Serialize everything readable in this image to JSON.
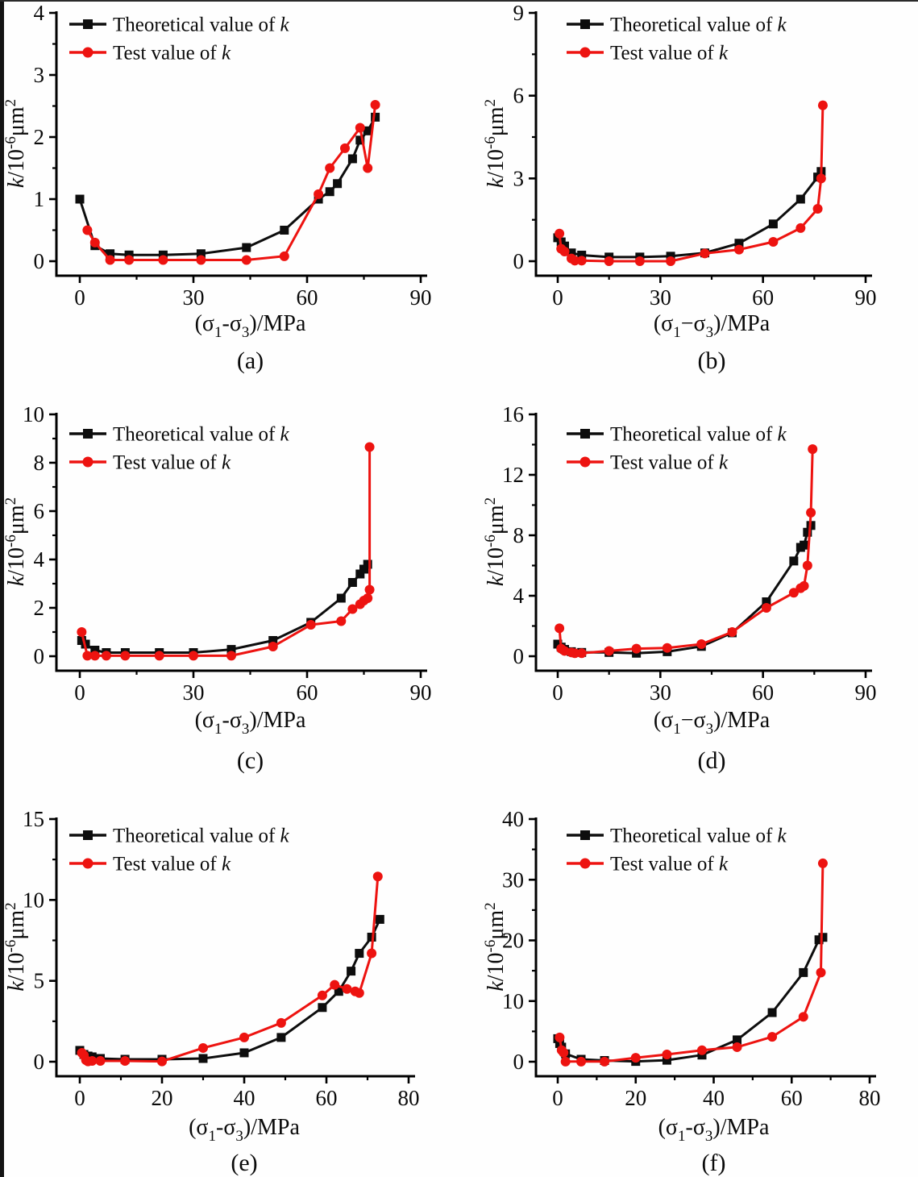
{
  "figure": {
    "description": "Six line charts comparing theoretical and test permeability k versus deviatoric stress",
    "background": "#fefefe",
    "axis_color": "#000000",
    "text_color": "#0a0a0a"
  },
  "legend": {
    "theoretical_label": "Theoretical value of k",
    "test_label": "Test value of k",
    "theoretical_color": "#0d0d0d",
    "test_color": "#ed1310"
  },
  "chart_data": [
    {
      "type": "line",
      "panel": "(a)",
      "xlabel": "(σ1-σ3)/MPa",
      "ylabel": "k/10^-6 μm^2",
      "xlabel_parts": {
        "pre": "(σ",
        "sub1": "1",
        "mid": "-σ",
        "sub2": "3",
        "post": ")/MPa"
      },
      "ylabel_parts": {
        "italic": "k",
        "base": "/10",
        "sup": "-6",
        "unit": "μm",
        "sup2": "2"
      },
      "xlim": [
        0,
        90
      ],
      "ylim": [
        0,
        4
      ],
      "xticks": [
        0,
        30,
        60,
        90
      ],
      "yticks": [
        0,
        1,
        2,
        3,
        4
      ],
      "grid": false,
      "legend_position": "top-left",
      "series": [
        {
          "name": "Theoretical value of k",
          "color": "#0d0d0d",
          "marker": "square",
          "points": [
            [
              0,
              1.0
            ],
            [
              4,
              0.25
            ],
            [
              8,
              0.12
            ],
            [
              13,
              0.1
            ],
            [
              22,
              0.1
            ],
            [
              32,
              0.12
            ],
            [
              44,
              0.22
            ],
            [
              54,
              0.5
            ],
            [
              63,
              1.0
            ],
            [
              66,
              1.12
            ],
            [
              68,
              1.25
            ],
            [
              72,
              1.65
            ],
            [
              74,
              1.95
            ],
            [
              76,
              2.1
            ],
            [
              78,
              2.32
            ]
          ]
        },
        {
          "name": "Test value of k",
          "color": "#ed1310",
          "marker": "circle",
          "points": [
            [
              2,
              0.5
            ],
            [
              4,
              0.3
            ],
            [
              8,
              0.02
            ],
            [
              13,
              0.02
            ],
            [
              22,
              0.02
            ],
            [
              32,
              0.02
            ],
            [
              44,
              0.02
            ],
            [
              54,
              0.08
            ],
            [
              63,
              1.08
            ],
            [
              66,
              1.5
            ],
            [
              70,
              1.82
            ],
            [
              74,
              2.15
            ],
            [
              76,
              1.5
            ],
            [
              78,
              2.52
            ]
          ]
        }
      ]
    },
    {
      "type": "line",
      "panel": "(b)",
      "xlabel": "(σ1−σ3)/MPa",
      "ylabel": "k/10^-6 μm^2",
      "xlabel_parts": {
        "pre": "(σ",
        "sub1": "1",
        "mid": "−σ",
        "sub2": "3",
        "post": ")/MPa"
      },
      "ylabel_parts": {
        "italic": "k",
        "base": "/10",
        "sup": "-6",
        "unit": "μm",
        "sup2": "2"
      },
      "xlim": [
        0,
        90
      ],
      "ylim": [
        0,
        9
      ],
      "xticks": [
        0,
        30,
        60,
        90
      ],
      "yticks": [
        0,
        3,
        6,
        9
      ],
      "grid": false,
      "legend_position": "top-left",
      "series": [
        {
          "name": "Theoretical value of k",
          "color": "#0d0d0d",
          "marker": "square",
          "points": [
            [
              0,
              0.85
            ],
            [
              1,
              0.7
            ],
            [
              2,
              0.55
            ],
            [
              4,
              0.3
            ],
            [
              7,
              0.22
            ],
            [
              15,
              0.15
            ],
            [
              24,
              0.15
            ],
            [
              33,
              0.18
            ],
            [
              43,
              0.3
            ],
            [
              53,
              0.65
            ],
            [
              63,
              1.35
            ],
            [
              71,
              2.25
            ],
            [
              76,
              3.05
            ],
            [
              77,
              3.25
            ]
          ]
        },
        {
          "name": "Test value of k",
          "color": "#ed1310",
          "marker": "circle",
          "points": [
            [
              0.5,
              1.0
            ],
            [
              1,
              0.45
            ],
            [
              2,
              0.35
            ],
            [
              4,
              0.1
            ],
            [
              5,
              0.02
            ],
            [
              7,
              0.02
            ],
            [
              15,
              0.0
            ],
            [
              24,
              0.0
            ],
            [
              33,
              0.0
            ],
            [
              43,
              0.28
            ],
            [
              53,
              0.42
            ],
            [
              63,
              0.7
            ],
            [
              71,
              1.2
            ],
            [
              76,
              1.9
            ],
            [
              77,
              3.0
            ],
            [
              77.5,
              5.65
            ]
          ]
        }
      ]
    },
    {
      "type": "line",
      "panel": "(c)",
      "xlabel": "(σ1-σ3)/MPa",
      "ylabel": "k/10^-6 μm^2",
      "xlabel_parts": {
        "pre": "(σ",
        "sub1": "1",
        "mid": "-σ",
        "sub2": "3",
        "post": ")/MPa"
      },
      "ylabel_parts": {
        "italic": "k",
        "base": "/10",
        "sup": "-6",
        "unit": "μm",
        "sup2": "2"
      },
      "xlim": [
        0,
        90
      ],
      "ylim": [
        0,
        10
      ],
      "xticks": [
        0,
        30,
        60,
        90
      ],
      "yticks": [
        0,
        2,
        4,
        6,
        8,
        10
      ],
      "grid": false,
      "legend_position": "top-left",
      "series": [
        {
          "name": "Theoretical value of k",
          "color": "#0d0d0d",
          "marker": "square",
          "points": [
            [
              0.5,
              0.65
            ],
            [
              1.5,
              0.5
            ],
            [
              4,
              0.25
            ],
            [
              7,
              0.15
            ],
            [
              12,
              0.15
            ],
            [
              21,
              0.15
            ],
            [
              30,
              0.15
            ],
            [
              40,
              0.28
            ],
            [
              51,
              0.65
            ],
            [
              61,
              1.4
            ],
            [
              69,
              2.4
            ],
            [
              72,
              3.05
            ],
            [
              74,
              3.4
            ],
            [
              75,
              3.6
            ],
            [
              76,
              3.8
            ]
          ]
        },
        {
          "name": "Test value of k",
          "color": "#ed1310",
          "marker": "circle",
          "points": [
            [
              0.5,
              1.0
            ],
            [
              2,
              0.02
            ],
            [
              4,
              0.02
            ],
            [
              7,
              0.02
            ],
            [
              12,
              0.02
            ],
            [
              21,
              0.02
            ],
            [
              30,
              0.02
            ],
            [
              40,
              0.02
            ],
            [
              51,
              0.4
            ],
            [
              61,
              1.3
            ],
            [
              69,
              1.45
            ],
            [
              72,
              1.95
            ],
            [
              74,
              2.15
            ],
            [
              75,
              2.3
            ],
            [
              76,
              2.4
            ],
            [
              76.5,
              2.75
            ],
            [
              76.5,
              8.65
            ]
          ]
        }
      ]
    },
    {
      "type": "line",
      "panel": "(d)",
      "xlabel": "(σ1−σ3)/MPa",
      "ylabel": "k/10^-6 μm^2",
      "xlabel_parts": {
        "pre": "(σ",
        "sub1": "1",
        "mid": "−σ",
        "sub2": "3",
        "post": ")/MPa"
      },
      "ylabel_parts": {
        "italic": "k",
        "base": "/10",
        "sup": "-6",
        "unit": "μm",
        "sup2": "2"
      },
      "xlim": [
        0,
        90
      ],
      "ylim": [
        0,
        16
      ],
      "xticks": [
        0,
        30,
        60,
        90
      ],
      "yticks": [
        0,
        4,
        8,
        12,
        16
      ],
      "grid": false,
      "legend_position": "top-left",
      "series": [
        {
          "name": "Theoretical value of k",
          "color": "#0d0d0d",
          "marker": "square",
          "points": [
            [
              0,
              0.8
            ],
            [
              1,
              0.6
            ],
            [
              2,
              0.45
            ],
            [
              4,
              0.3
            ],
            [
              7,
              0.25
            ],
            [
              15,
              0.25
            ],
            [
              23,
              0.2
            ],
            [
              32,
              0.3
            ],
            [
              42,
              0.65
            ],
            [
              51,
              1.55
            ],
            [
              61,
              3.6
            ],
            [
              69,
              6.3
            ],
            [
              71,
              7.2
            ],
            [
              72,
              7.35
            ],
            [
              73,
              8.2
            ],
            [
              74,
              8.65
            ]
          ]
        },
        {
          "name": "Test value of k",
          "color": "#ed1310",
          "marker": "circle",
          "points": [
            [
              0.5,
              1.85
            ],
            [
              1,
              0.5
            ],
            [
              2,
              0.35
            ],
            [
              4,
              0.25
            ],
            [
              5,
              0.2
            ],
            [
              7,
              0.2
            ],
            [
              15,
              0.35
            ],
            [
              23,
              0.5
            ],
            [
              32,
              0.55
            ],
            [
              42,
              0.8
            ],
            [
              51,
              1.6
            ],
            [
              61,
              3.2
            ],
            [
              69,
              4.2
            ],
            [
              71,
              4.5
            ],
            [
              72,
              4.65
            ],
            [
              73,
              6.0
            ],
            [
              74,
              9.5
            ],
            [
              74.5,
              13.7
            ]
          ]
        }
      ]
    },
    {
      "type": "line",
      "panel": "(e)",
      "xlabel": "(σ1-σ3)/MPa",
      "ylabel": "k/10^-6 μm^2",
      "xlabel_parts": {
        "pre": "(σ",
        "sub1": "1",
        "mid": "-σ",
        "sub2": "3",
        "post": ")/MPa"
      },
      "ylabel_parts": {
        "italic": "k",
        "base": "/10",
        "sup": "-6",
        "unit": "μm",
        "sup2": "2"
      },
      "xlim": [
        0,
        80
      ],
      "ylim": [
        0,
        15
      ],
      "xticks": [
        0,
        20,
        40,
        60,
        80
      ],
      "yticks": [
        0,
        5,
        10,
        15
      ],
      "grid": false,
      "legend_position": "top-left",
      "series": [
        {
          "name": "Theoretical value of k",
          "color": "#0d0d0d",
          "marker": "square",
          "points": [
            [
              0,
              0.7
            ],
            [
              1,
              0.45
            ],
            [
              2,
              0.35
            ],
            [
              3,
              0.3
            ],
            [
              5,
              0.2
            ],
            [
              11,
              0.15
            ],
            [
              20,
              0.15
            ],
            [
              30,
              0.2
            ],
            [
              40,
              0.55
            ],
            [
              49,
              1.5
            ],
            [
              59,
              3.35
            ],
            [
              63,
              4.35
            ],
            [
              66,
              5.6
            ],
            [
              68,
              6.7
            ],
            [
              71,
              7.7
            ],
            [
              73,
              8.8
            ]
          ]
        },
        {
          "name": "Test value of k",
          "color": "#ed1310",
          "marker": "circle",
          "points": [
            [
              0.5,
              0.55
            ],
            [
              1,
              0.4
            ],
            [
              1.5,
              0.1
            ],
            [
              2,
              0.02
            ],
            [
              3,
              0.05
            ],
            [
              5,
              0.05
            ],
            [
              11,
              0.05
            ],
            [
              20,
              0.02
            ],
            [
              30,
              0.85
            ],
            [
              40,
              1.5
            ],
            [
              49,
              2.4
            ],
            [
              59,
              4.1
            ],
            [
              62,
              4.75
            ],
            [
              65,
              4.5
            ],
            [
              67,
              4.35
            ],
            [
              68,
              4.25
            ],
            [
              71,
              6.7
            ],
            [
              72.5,
              11.45
            ]
          ]
        }
      ]
    },
    {
      "type": "line",
      "panel": "(f)",
      "xlabel": "(σ1-σ3)/MPa",
      "ylabel": "k/10^-6 μm^2",
      "xlabel_parts": {
        "pre": "(σ",
        "sub1": "1",
        "mid": "-σ",
        "sub2": "3",
        "post": ")/MPa"
      },
      "ylabel_parts": {
        "italic": "k",
        "base": "/10",
        "sup": "-6",
        "unit": "μm",
        "sup2": "2"
      },
      "xlim": [
        0,
        80
      ],
      "ylim": [
        0,
        40
      ],
      "xticks": [
        0,
        20,
        40,
        60,
        80
      ],
      "yticks": [
        0,
        10,
        20,
        30,
        40
      ],
      "grid": false,
      "legend_position": "top-left",
      "series": [
        {
          "name": "Theoretical value of k",
          "color": "#0d0d0d",
          "marker": "square",
          "points": [
            [
              0,
              3.8
            ],
            [
              0.5,
              3.0
            ],
            [
              1,
              2.4
            ],
            [
              2,
              1.3
            ],
            [
              6,
              0.4
            ],
            [
              12,
              0.2
            ],
            [
              20,
              0.05
            ],
            [
              28,
              0.25
            ],
            [
              37,
              1.1
            ],
            [
              46,
              3.6
            ],
            [
              55,
              8.1
            ],
            [
              63,
              14.7
            ],
            [
              67,
              20.1
            ],
            [
              68,
              20.5
            ]
          ]
        },
        {
          "name": "Test value of k",
          "color": "#ed1310",
          "marker": "circle",
          "points": [
            [
              0.5,
              4.0
            ],
            [
              1,
              1.9
            ],
            [
              1.5,
              1.5
            ],
            [
              2,
              0.02
            ],
            [
              6,
              0.02
            ],
            [
              12,
              0.02
            ],
            [
              20,
              0.65
            ],
            [
              28,
              1.2
            ],
            [
              37,
              1.9
            ],
            [
              46,
              2.4
            ],
            [
              55,
              4.1
            ],
            [
              63,
              7.4
            ],
            [
              67.5,
              14.7
            ],
            [
              68,
              32.7
            ]
          ]
        }
      ]
    }
  ]
}
